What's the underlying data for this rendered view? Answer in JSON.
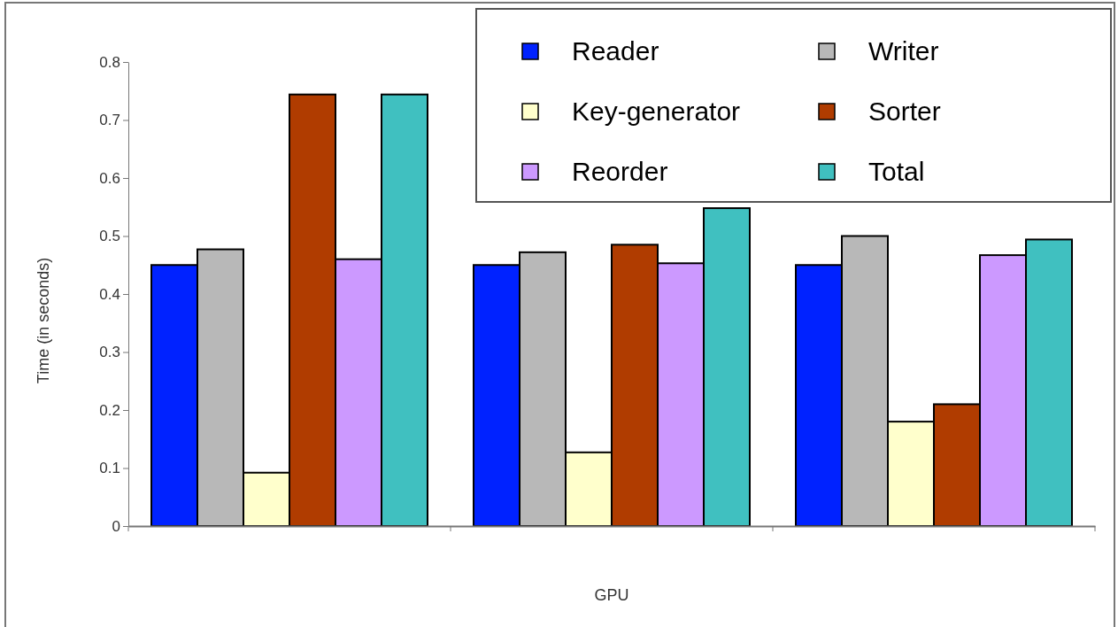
{
  "chart_data": {
    "type": "bar",
    "xlabel": "GPU",
    "ylabel": "Time (in seconds)",
    "categories": [
      null,
      null,
      null
    ],
    "series": [
      {
        "name": "Reader",
        "color": "#0022ff",
        "values": [
          0.45,
          0.45,
          0.45
        ]
      },
      {
        "name": "Writer",
        "color": "#b8b8b8",
        "values": [
          0.477,
          0.472,
          0.5
        ]
      },
      {
        "name": "Key-generator",
        "color": "#ffffcc",
        "values": [
          0.092,
          0.127,
          0.18
        ]
      },
      {
        "name": "Sorter",
        "color": "#b03c00",
        "values": [
          0.744,
          0.485,
          0.21
        ]
      },
      {
        "name": "Reorder",
        "color": "#cc99ff",
        "values": [
          0.46,
          0.453,
          0.467
        ]
      },
      {
        "name": "Total",
        "color": "#40c0c0",
        "values": [
          0.744,
          0.548,
          0.494
        ]
      }
    ],
    "ylim": [
      0,
      0.8
    ],
    "yticks": [
      0,
      0.1,
      0.2,
      0.3,
      0.4,
      0.5,
      0.6,
      0.7,
      0.8
    ],
    "grid": false,
    "legend": "top right"
  }
}
